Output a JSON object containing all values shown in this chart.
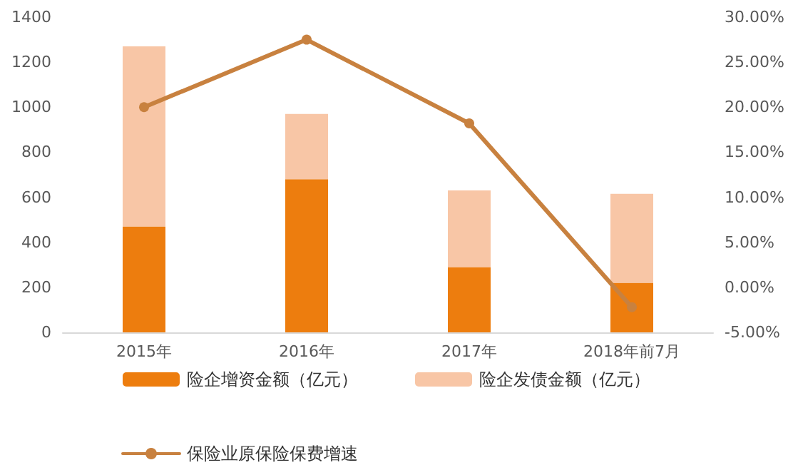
{
  "chart_data": {
    "type": "bar",
    "categories": [
      "2015年",
      "2016年",
      "2017年",
      "2018年前7月"
    ],
    "stacked": true,
    "series": [
      {
        "name": "险企增资金额（亿元）",
        "color": "#ed7d0e",
        "values": [
          470,
          680,
          290,
          220
        ]
      },
      {
        "name": "险企发债金额（亿元）",
        "color": "#f8c6a6",
        "values": [
          800,
          290,
          340,
          395
        ]
      },
      {
        "name": "保险业原保险保费增速",
        "type": "line",
        "axis": "y2",
        "color": "#c8813f",
        "values": [
          20.0,
          27.5,
          18.2,
          -2.2
        ]
      }
    ],
    "ylim": [
      0,
      1400
    ],
    "yticks": [
      0,
      200,
      400,
      600,
      800,
      1000,
      1200,
      1400
    ],
    "y2lim": [
      -5,
      30
    ],
    "y2ticks": [
      {
        "value": -5,
        "label": "-5.00%"
      },
      {
        "value": 0,
        "label": "0.00%"
      },
      {
        "value": 5,
        "label": "5.00%"
      },
      {
        "value": 10,
        "label": "10.00%"
      },
      {
        "value": 15,
        "label": "15.00%"
      },
      {
        "value": 20,
        "label": "20.00%"
      },
      {
        "value": 25,
        "label": "25.00%"
      },
      {
        "value": 30,
        "label": "30.00%"
      }
    ],
    "grid": false,
    "legend": "bottom",
    "marker": "circle",
    "line_style": "solid"
  }
}
